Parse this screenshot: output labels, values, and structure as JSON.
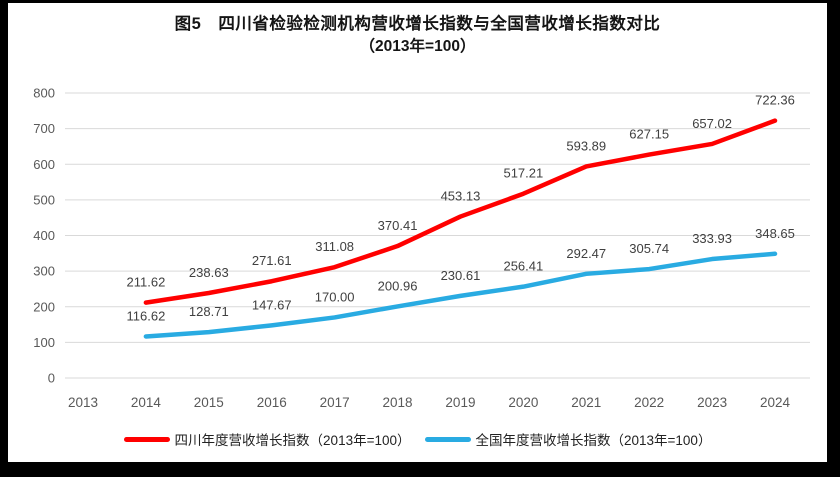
{
  "chart_data": {
    "type": "line",
    "title": "图5　四川省检验检测机构营收增长指数与全国营收增长指数对比",
    "subtitle": "（2013年=100）",
    "categories": [
      "2013",
      "2014",
      "2015",
      "2016",
      "2017",
      "2018",
      "2019",
      "2020",
      "2021",
      "2022",
      "2023",
      "2024"
    ],
    "series": [
      {
        "name": "四川年度营收增长指数（2013年=100）",
        "color": "#FF0000",
        "values": [
          null,
          211.62,
          238.63,
          271.61,
          311.08,
          370.41,
          453.13,
          517.21,
          593.89,
          627.15,
          657.02,
          722.36
        ]
      },
      {
        "name": "全国年度营收增长指数（2013年=100）",
        "color": "#29ABE2",
        "values": [
          null,
          116.62,
          128.71,
          147.67,
          170.0,
          200.96,
          230.61,
          256.41,
          292.47,
          305.74,
          333.93,
          348.65
        ]
      }
    ],
    "ylim": [
      0,
      800
    ],
    "ytick_step": 100,
    "grid": true,
    "legend_position": "bottom",
    "colors": {
      "grid": "#D9D9D9",
      "axis_text": "#595959",
      "label_text": "#404040",
      "background": "#FFFFFF",
      "frame": "#000000"
    }
  }
}
